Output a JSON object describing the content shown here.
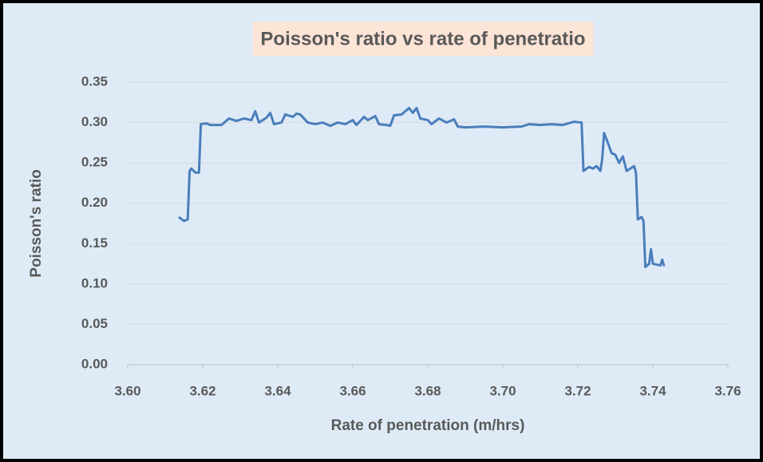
{
  "chart_data": {
    "type": "line",
    "title": "Poisson's ratio vs rate of penetratio",
    "x_label": "Rate of penetration (m/hrs)",
    "y_label": "Poisson's ratio",
    "grid": true,
    "xlim": [
      3.6,
      3.76
    ],
    "ylim": [
      0,
      0.35
    ],
    "xticks": [
      {
        "value": 3.6,
        "label": "3.60"
      },
      {
        "value": 3.62,
        "label": "3.62"
      },
      {
        "value": 3.64,
        "label": "3.64"
      },
      {
        "value": 3.66,
        "label": "3.66"
      },
      {
        "value": 3.68,
        "label": "3.68"
      },
      {
        "value": 3.7,
        "label": "3.70"
      },
      {
        "value": 3.72,
        "label": "3.72"
      },
      {
        "value": 3.74,
        "label": "3.74"
      },
      {
        "value": 3.76,
        "label": "3.76"
      }
    ],
    "yticks": [
      {
        "value": 0,
        "label": "0.00"
      },
      {
        "value": 0.05,
        "label": "0.05"
      },
      {
        "value": 0.1,
        "label": "0.10"
      },
      {
        "value": 0.15,
        "label": "0.15"
      },
      {
        "value": 0.2,
        "label": "0.20"
      },
      {
        "value": 0.25,
        "label": "0.25"
      },
      {
        "value": 0.3,
        "label": "0.30"
      },
      {
        "value": 0.35,
        "label": "0.35"
      }
    ],
    "color": "#4a7ebb",
    "x": [
      3.6136,
      3.615,
      3.616,
      3.6165,
      3.617,
      3.618,
      3.619,
      3.6195,
      3.621,
      3.622,
      3.625,
      3.627,
      3.629,
      3.631,
      3.633,
      3.634,
      3.635,
      3.637,
      3.638,
      3.639,
      3.641,
      3.642,
      3.644,
      3.645,
      3.646,
      3.648,
      3.65,
      3.652,
      3.654,
      3.656,
      3.658,
      3.66,
      3.661,
      3.663,
      3.664,
      3.666,
      3.667,
      3.669,
      3.67,
      3.671,
      3.673,
      3.675,
      3.676,
      3.677,
      3.678,
      3.68,
      3.681,
      3.683,
      3.685,
      3.687,
      3.688,
      3.69,
      3.695,
      3.7,
      3.705,
      3.707,
      3.71,
      3.713,
      3.716,
      3.719,
      3.721,
      3.7215,
      3.723,
      3.724,
      3.725,
      3.726,
      3.7265,
      3.727,
      3.728,
      3.729,
      3.73,
      3.731,
      3.732,
      3.733,
      3.734,
      3.735,
      3.7355,
      3.736,
      3.737,
      3.7375,
      3.738,
      3.739,
      3.7395,
      3.74,
      3.741,
      3.742,
      3.7425,
      3.743
    ],
    "values": [
      0.183,
      0.178,
      0.18,
      0.24,
      0.243,
      0.238,
      0.238,
      0.298,
      0.299,
      0.297,
      0.297,
      0.305,
      0.302,
      0.305,
      0.303,
      0.314,
      0.3,
      0.306,
      0.312,
      0.298,
      0.3,
      0.31,
      0.307,
      0.311,
      0.31,
      0.3,
      0.298,
      0.3,
      0.296,
      0.3,
      0.298,
      0.303,
      0.297,
      0.307,
      0.303,
      0.308,
      0.298,
      0.297,
      0.296,
      0.309,
      0.31,
      0.318,
      0.312,
      0.318,
      0.305,
      0.303,
      0.298,
      0.305,
      0.3,
      0.304,
      0.295,
      0.294,
      0.295,
      0.294,
      0.295,
      0.298,
      0.297,
      0.298,
      0.297,
      0.301,
      0.3,
      0.24,
      0.245,
      0.243,
      0.246,
      0.24,
      0.255,
      0.287,
      0.275,
      0.262,
      0.26,
      0.25,
      0.258,
      0.24,
      0.243,
      0.246,
      0.238,
      0.18,
      0.183,
      0.178,
      0.121,
      0.125,
      0.143,
      0.125,
      0.124,
      0.123,
      0.13,
      0.122
    ]
  }
}
